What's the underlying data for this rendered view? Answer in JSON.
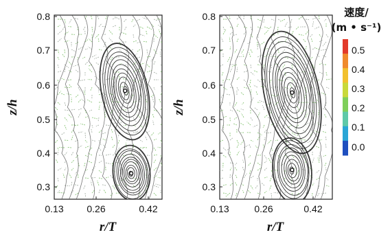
{
  "chart_data": [
    {
      "type": "streamline",
      "panel": "left",
      "xlabel": "r/T",
      "ylabel": "z/h",
      "x_ticks": [
        "0.13",
        "0.26",
        "0.42"
      ],
      "y_ticks": [
        "0.8",
        "0.7",
        "0.6",
        "0.5",
        "0.4",
        "0.3"
      ],
      "xlim": [
        0.13,
        0.48
      ],
      "ylim": [
        0.265,
        0.8
      ],
      "vortices": [
        {
          "x": 0.36,
          "y": 0.58,
          "rx": 0.075,
          "ry": 0.15,
          "rings": 11
        },
        {
          "x": 0.38,
          "y": 0.34,
          "rx": 0.06,
          "ry": 0.085,
          "rings": 10
        }
      ]
    },
    {
      "type": "streamline",
      "panel": "right",
      "xlabel": "r/T",
      "ylabel": "z/h",
      "x_ticks": [
        "0.13",
        "0.26",
        "0.42"
      ],
      "y_ticks": [
        "0.8",
        "0.7",
        "0.6",
        "0.5",
        "0.4",
        "0.3"
      ],
      "xlim": [
        0.13,
        0.48
      ],
      "ylim": [
        0.265,
        0.8
      ],
      "vortices": [
        {
          "x": 0.355,
          "y": 0.575,
          "rx": 0.085,
          "ry": 0.19,
          "rings": 12
        },
        {
          "x": 0.355,
          "y": 0.35,
          "rx": 0.06,
          "ry": 0.1,
          "rings": 9
        }
      ]
    }
  ],
  "colorbar": {
    "title_line1": "速度/",
    "title_line2": "(m • s⁻¹)",
    "ticks": [
      "0.5",
      "0.4",
      "0.3",
      "0.2",
      "0.1",
      "0.0"
    ],
    "range": [
      0.0,
      0.6
    ],
    "colors": [
      "#1f4fbf",
      "#2aa6d6",
      "#5fc9a8",
      "#7fcf5a",
      "#c9d93a",
      "#f2c12e",
      "#f08a2c",
      "#e23a2a"
    ]
  }
}
